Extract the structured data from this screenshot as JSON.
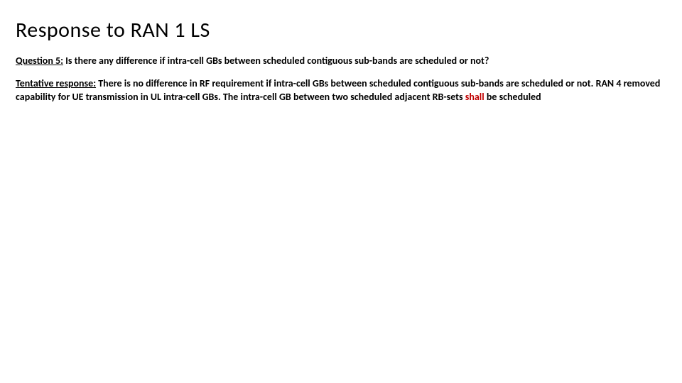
{
  "title": "Response to RAN 1 LS",
  "question": {
    "label": "Question 5:",
    "text": " Is there any difference if intra-cell GBs between scheduled contiguous sub-bands are scheduled or not?"
  },
  "response": {
    "label": "Tentative response:",
    "part1": " There is no difference in RF requirement if intra-cell GBs between scheduled contiguous sub-bands are scheduled or not. RAN 4 removed capability for UE transmission in UL intra-cell GBs. The intra-cell GB between two scheduled adjacent RB-sets ",
    "emphasis": "shall",
    "part2": " be scheduled"
  },
  "colors": {
    "text": "#000000",
    "emphasis": "#c00000",
    "background": "#ffffff"
  },
  "typography": {
    "title_fontsize": 30,
    "body_fontsize": 14,
    "font_family": "Calibri"
  }
}
